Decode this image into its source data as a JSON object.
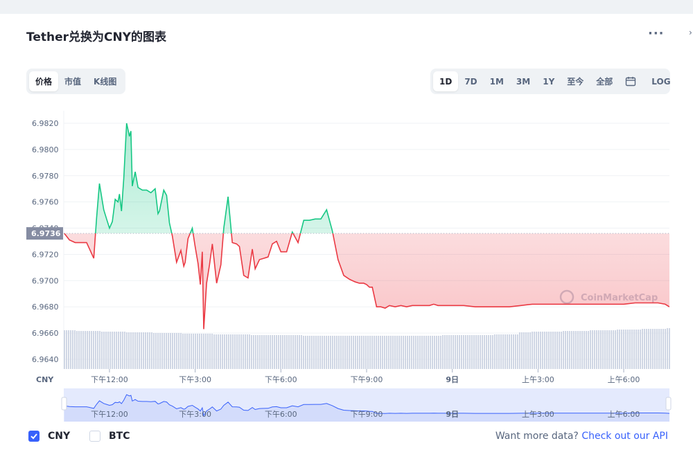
{
  "title": "Tether兑换为CNY的图表",
  "chart_tabs": [
    {
      "label": "价格",
      "active": true
    },
    {
      "label": "市值",
      "active": false
    },
    {
      "label": "K线图",
      "active": false
    }
  ],
  "range_tabs": [
    {
      "label": "1D",
      "active": true
    },
    {
      "label": "7D",
      "active": false
    },
    {
      "label": "1M",
      "active": false
    },
    {
      "label": "3M",
      "active": false
    },
    {
      "label": "1Y",
      "active": false
    },
    {
      "label": "至今",
      "active": false
    },
    {
      "label": "全部",
      "active": false
    }
  ],
  "calendar_icon": "calendar-icon",
  "log_label": "LOG",
  "watermark": "CoinMarketCap",
  "colors": {
    "up": "#16c784",
    "down": "#ea3943",
    "baseline_label_bg": "#858ca2",
    "navigator_fill": "#e4eafd",
    "navigator_line": "#3861fb"
  },
  "chart_data": {
    "type": "line",
    "currency_label": "CNY",
    "baseline": 6.9736,
    "baseline_label": "6.9736",
    "ylim": [
      6.963,
      6.983
    ],
    "yticks": [
      "6.9640",
      "6.9660",
      "6.9680",
      "6.9700",
      "6.9720",
      "6.9740",
      "6.9760",
      "6.9780",
      "6.9800",
      "6.9820"
    ],
    "xlim_hours": [
      10.4,
      31.6
    ],
    "xticks": [
      {
        "t": 12,
        "label": "下午12:00"
      },
      {
        "t": 15,
        "label": "下午3:00"
      },
      {
        "t": 18,
        "label": "下午6:00"
      },
      {
        "t": 21,
        "label": "下午9:00"
      },
      {
        "t": 24,
        "label": "9日"
      },
      {
        "t": 27,
        "label": "上午3:00"
      },
      {
        "t": 30,
        "label": "上午6:00"
      }
    ],
    "series": [
      {
        "t": [
          10.42,
          10.6,
          10.8,
          11.0,
          11.2,
          11.45,
          11.55,
          11.65,
          11.8,
          11.9,
          12.0,
          12.1,
          12.2,
          12.3,
          12.35,
          12.42,
          12.5,
          12.6,
          12.7,
          12.75,
          12.8,
          12.9,
          13.0,
          13.15,
          13.3,
          13.45,
          13.6,
          13.7,
          13.75,
          13.9,
          14.0,
          14.1,
          14.2,
          14.35,
          14.5,
          14.6,
          14.65,
          14.75,
          14.9,
          15.0,
          15.1,
          15.18,
          15.25,
          15.3,
          15.4,
          15.5,
          15.6,
          15.75,
          15.9,
          16.0,
          16.15,
          16.3,
          16.45,
          16.55,
          16.7,
          16.85,
          17.0,
          17.1,
          17.25,
          17.4,
          17.55,
          17.7,
          17.85,
          18.0,
          18.2,
          18.4,
          18.6,
          18.8,
          19.0,
          19.2,
          19.4,
          19.6,
          19.8,
          20.0,
          20.2,
          20.4,
          20.6,
          20.75,
          20.9,
          21.0,
          21.1,
          21.2,
          21.35,
          21.5,
          21.65,
          21.8,
          22.0,
          22.2,
          22.4,
          22.6,
          22.8,
          23.0,
          23.2,
          23.35,
          23.5,
          23.7,
          23.9,
          24.1,
          24.4,
          24.8,
          25.2,
          25.6,
          26.0,
          26.4,
          26.8,
          27.2,
          27.6,
          28.0,
          28.4,
          28.8,
          29.2,
          29.6,
          30.0,
          30.4,
          30.8,
          31.2,
          31.45,
          31.6
        ],
        "y": [
          6.9736,
          6.9731,
          6.9729,
          6.9729,
          6.9729,
          6.9717,
          6.9748,
          6.9774,
          6.9754,
          6.9747,
          6.974,
          6.9745,
          6.9762,
          6.976,
          6.9766,
          6.9753,
          6.9778,
          6.982,
          6.981,
          6.9814,
          6.9772,
          6.9783,
          6.9771,
          6.9769,
          6.9769,
          6.9767,
          6.977,
          6.9751,
          6.9753,
          6.9769,
          6.9765,
          6.9744,
          6.9734,
          6.9714,
          6.9723,
          6.9711,
          6.9714,
          6.9732,
          6.974,
          6.9726,
          6.9713,
          6.9697,
          6.9722,
          6.9663,
          6.9698,
          6.9712,
          6.9728,
          6.9698,
          6.9712,
          6.974,
          6.9764,
          6.9729,
          6.9728,
          6.9726,
          6.9704,
          6.9702,
          6.9724,
          6.9709,
          6.9716,
          6.9717,
          6.9718,
          6.9728,
          6.973,
          6.9722,
          6.9722,
          6.9737,
          6.9729,
          6.9746,
          6.9746,
          6.9747,
          6.9747,
          6.9754,
          6.9738,
          6.9716,
          6.9704,
          6.9701,
          6.9699,
          6.9698,
          6.9698,
          6.9697,
          6.9695,
          6.9695,
          6.968,
          6.968,
          6.9679,
          6.9681,
          6.968,
          6.9681,
          6.968,
          6.9681,
          6.9681,
          6.9681,
          6.9681,
          6.9682,
          6.9681,
          6.9681,
          6.9681,
          6.9681,
          6.9681,
          6.968,
          6.968,
          6.968,
          6.968,
          6.9681,
          6.9682,
          6.9682,
          6.9682,
          6.9682,
          6.9682,
          6.9682,
          6.9682,
          6.9682,
          6.9682,
          6.9683,
          6.9683,
          6.9683,
          6.9682,
          6.968
        ]
      }
    ]
  },
  "footer": {
    "checkbox_cny": "CNY",
    "checkbox_btc": "BTC",
    "api_text": "Want more data?",
    "api_link": "Check out our API"
  }
}
